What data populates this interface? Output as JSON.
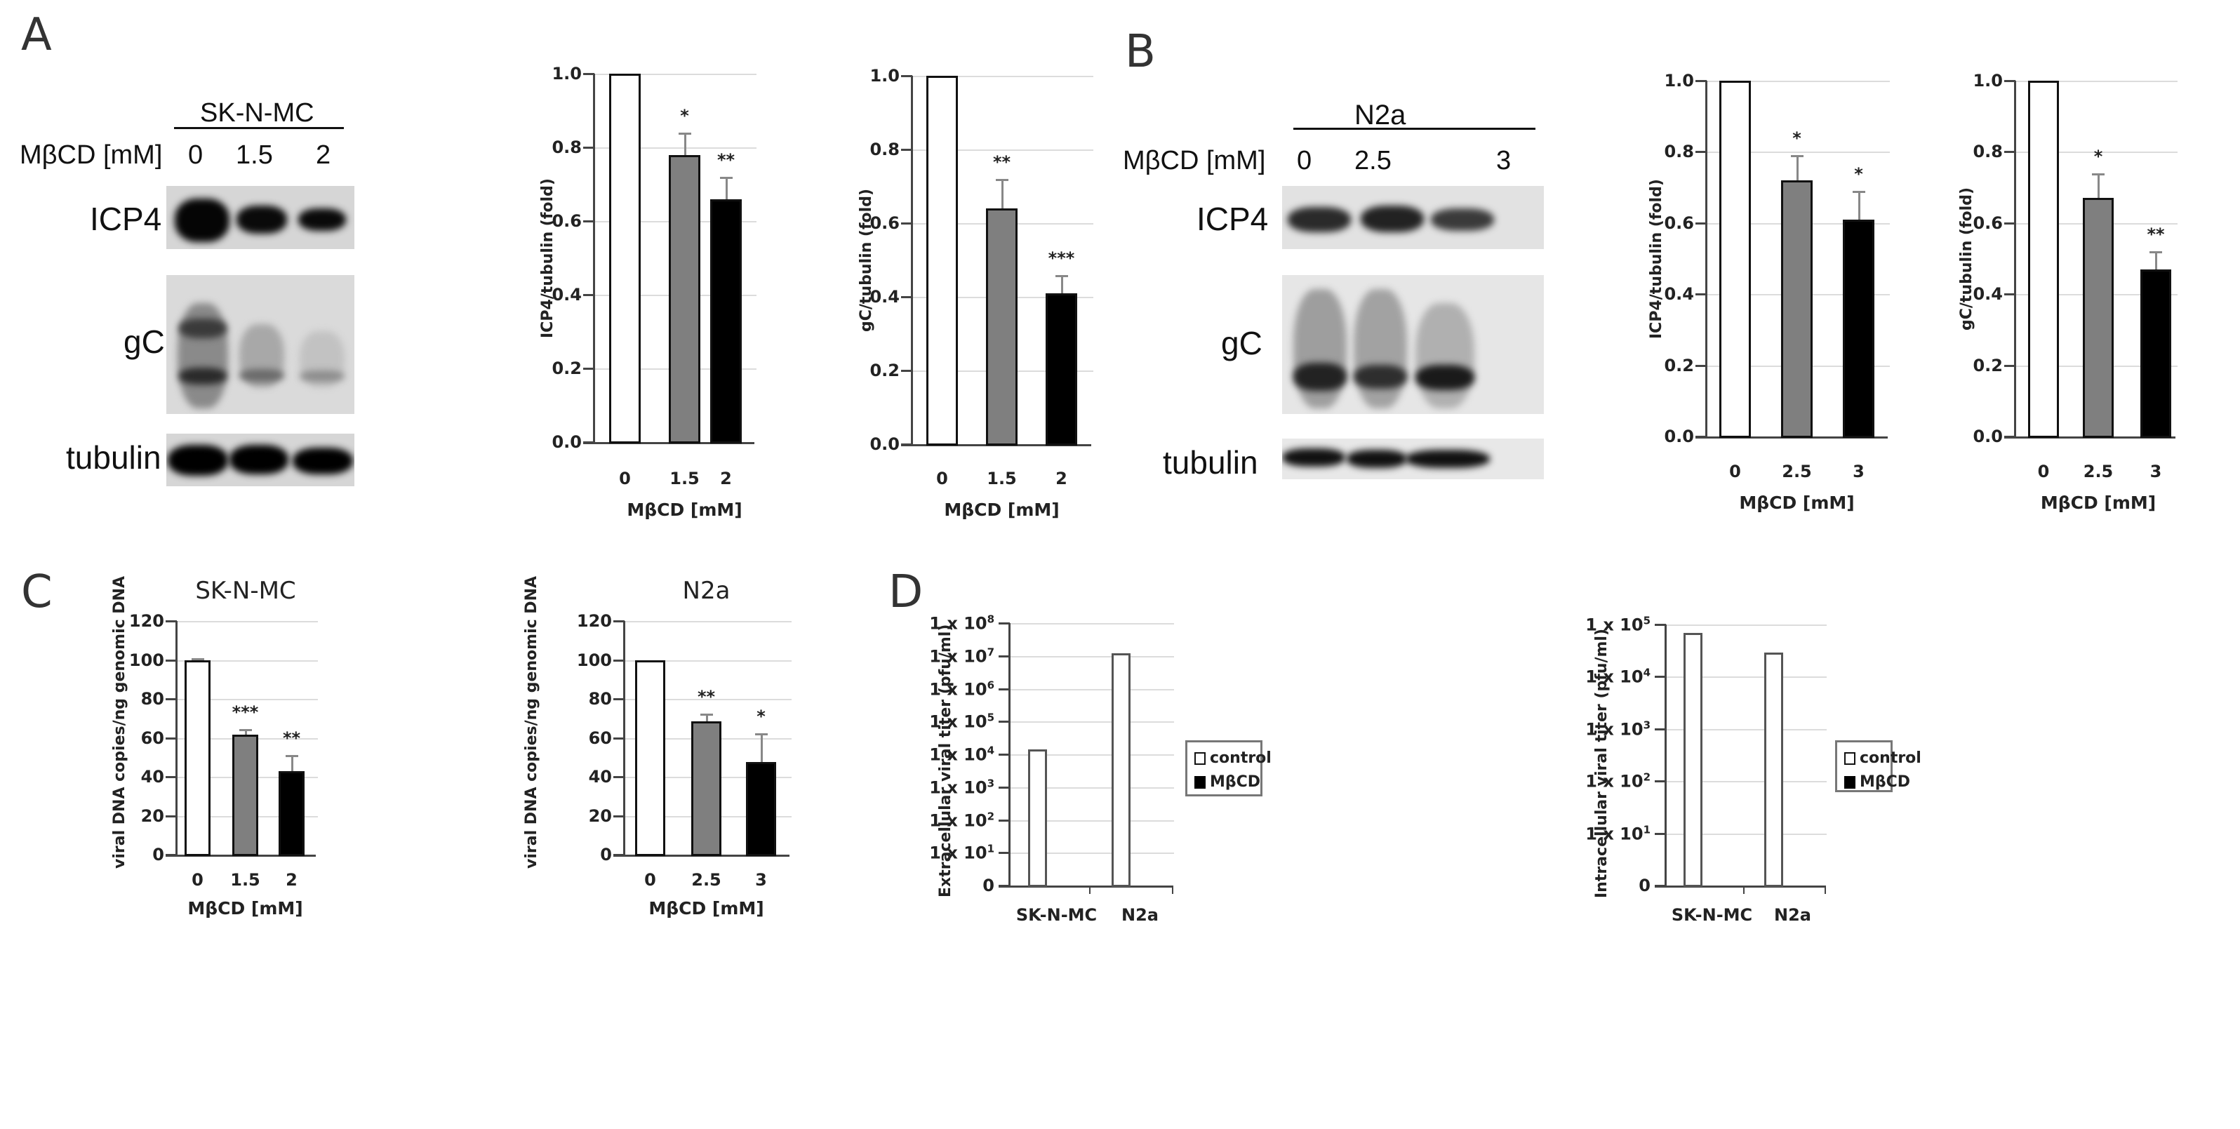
{
  "panels": {
    "A": {
      "label": "A",
      "blot": {
        "cell_line": "SK-N-MC",
        "treatment_label": "MβCD [mM]",
        "lanes": [
          "0",
          "1.5",
          "2"
        ],
        "rows": [
          "ICP4",
          "gC",
          "tubulin"
        ]
      }
    },
    "B": {
      "label": "B",
      "blot": {
        "cell_line": "N2a",
        "treatment_label": "MβCD [mM]",
        "lanes": [
          "0",
          "2.5",
          "3"
        ],
        "rows": [
          "ICP4",
          "gC",
          "tubulin"
        ]
      }
    },
    "C": {
      "label": "C"
    },
    "D": {
      "label": "D"
    }
  },
  "chart_data": [
    {
      "id": "A1",
      "panel": "A",
      "type": "bar",
      "title": "",
      "categories": [
        "0",
        "1.5",
        "2"
      ],
      "values": [
        1.0,
        0.78,
        0.66
      ],
      "errors": [
        0.0,
        0.06,
        0.06
      ],
      "significance": [
        "",
        "*",
        "**"
      ],
      "bar_colors": [
        "#ffffff",
        "#7f7f7f",
        "#000000"
      ],
      "xlabel": "MβCD [mM]",
      "ylabel": "ICP4/tubulin (fold)",
      "ylim": [
        0,
        1.0
      ],
      "yticks": [
        "0.0",
        "0.2",
        "0.4",
        "0.6",
        "0.8",
        "1.0"
      ],
      "grid": true
    },
    {
      "id": "A2",
      "panel": "A",
      "type": "bar",
      "title": "",
      "categories": [
        "0",
        "1.5",
        "2"
      ],
      "values": [
        1.0,
        0.64,
        0.41
      ],
      "errors": [
        0.0,
        0.08,
        0.05
      ],
      "significance": [
        "",
        "**",
        "***"
      ],
      "bar_colors": [
        "#ffffff",
        "#7f7f7f",
        "#000000"
      ],
      "xlabel": "MβCD [mM]",
      "ylabel": "gC/tubulin (fold)",
      "ylim": [
        0,
        1.0
      ],
      "yticks": [
        "0.0",
        "0.2",
        "0.4",
        "0.6",
        "0.8",
        "1.0"
      ],
      "grid": true
    },
    {
      "id": "B1",
      "panel": "B",
      "type": "bar",
      "title": "",
      "categories": [
        "0",
        "2.5",
        "3"
      ],
      "values": [
        1.0,
        0.72,
        0.61
      ],
      "errors": [
        0.0,
        0.07,
        0.08
      ],
      "significance": [
        "",
        "*",
        "*"
      ],
      "bar_colors": [
        "#ffffff",
        "#7f7f7f",
        "#000000"
      ],
      "xlabel": "MβCD [mM]",
      "ylabel": "ICP4/tubulin (fold)",
      "ylim": [
        0,
        1.0
      ],
      "yticks": [
        "0.0",
        "0.2",
        "0.4",
        "0.6",
        "0.8",
        "1.0"
      ],
      "grid": true
    },
    {
      "id": "B2",
      "panel": "B",
      "type": "bar",
      "title": "",
      "categories": [
        "0",
        "2.5",
        "3"
      ],
      "values": [
        1.0,
        0.67,
        0.47
      ],
      "errors": [
        0.0,
        0.07,
        0.05
      ],
      "significance": [
        "",
        "*",
        "**"
      ],
      "bar_colors": [
        "#ffffff",
        "#7f7f7f",
        "#000000"
      ],
      "xlabel": "MβCD [mM]",
      "ylabel": "gC/tubulin (fold)",
      "ylim": [
        0,
        1.0
      ],
      "yticks": [
        "0.0",
        "0.2",
        "0.4",
        "0.6",
        "0.8",
        "1.0"
      ],
      "grid": true
    },
    {
      "id": "C1",
      "panel": "C",
      "type": "bar",
      "title": "SK-N-MC",
      "categories": [
        "0",
        "1.5",
        "2"
      ],
      "values": [
        100,
        61.5,
        43
      ],
      "errors": [
        1,
        3,
        8
      ],
      "significance": [
        "",
        "***",
        "**"
      ],
      "bar_colors": [
        "#ffffff",
        "#7f7f7f",
        "#000000"
      ],
      "xlabel": "MβCD [mM]",
      "ylabel": "viral DNA copies/ng genomic DNA",
      "ylim": [
        0,
        120
      ],
      "yticks": [
        "0",
        "20",
        "40",
        "60",
        "80",
        "100",
        "120"
      ],
      "grid": true
    },
    {
      "id": "C2",
      "panel": "C",
      "type": "bar",
      "title": "N2a",
      "categories": [
        "0",
        "2.5",
        "3"
      ],
      "values": [
        100,
        68.5,
        47.5
      ],
      "errors": [
        0,
        4,
        15
      ],
      "significance": [
        "",
        "**",
        "*"
      ],
      "bar_colors": [
        "#ffffff",
        "#7f7f7f",
        "#000000"
      ],
      "xlabel": "MβCD [mM]",
      "ylabel": "viral DNA copies/ng genomic DNA",
      "ylim": [
        0,
        120
      ],
      "yticks": [
        "0",
        "20",
        "40",
        "60",
        "80",
        "100",
        "120"
      ],
      "grid": true
    },
    {
      "id": "D1",
      "panel": "D",
      "type": "bar",
      "title": "",
      "categories": [
        "SK-N-MC",
        "N2a"
      ],
      "series": [
        {
          "name": "control",
          "values": [
            14000,
            12000000
          ],
          "color": "#ffffff"
        },
        {
          "name": "MβCD",
          "values": [
            0,
            0
          ],
          "color": "#000000"
        }
      ],
      "xlabel": "",
      "ylabel": "Extracellular viral titer (pfu/ml)",
      "yscale": "log",
      "ylim": [
        0,
        100000000
      ],
      "yticks": [
        "0",
        "1 x 10^1",
        "1 x 10^2",
        "1 x 10^3",
        "1 x 10^4",
        "1 x 10^5",
        "1 x 10^6",
        "1 x 10^7",
        "1 x 10^8"
      ],
      "legend": [
        "control",
        "MβCD"
      ],
      "legend_position": "right",
      "grid": true
    },
    {
      "id": "D2",
      "panel": "D",
      "type": "bar",
      "title": "",
      "categories": [
        "SK-N-MC",
        "N2a"
      ],
      "series": [
        {
          "name": "control",
          "values": [
            68000,
            29000
          ],
          "color": "#ffffff"
        },
        {
          "name": "MβCD",
          "values": [
            0,
            0
          ],
          "color": "#000000"
        }
      ],
      "xlabel": "",
      "ylabel": "Intracellular viral titer (pfu/ml)",
      "yscale": "log",
      "ylim": [
        0,
        100000
      ],
      "yticks": [
        "0",
        "1 x 10^1",
        "1 x 10^2",
        "1 x 10^3",
        "1 x 10^4",
        "1 x 10^5"
      ],
      "legend": [
        "control",
        "MβCD"
      ],
      "legend_position": "right",
      "grid": true
    }
  ]
}
